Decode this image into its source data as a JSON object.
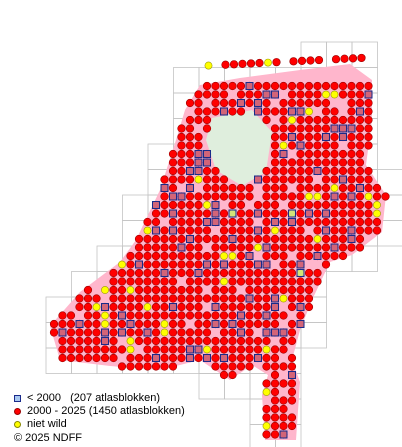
{
  "legend": [
    {
      "label": "< 2000   (207 atlasblokken)"
    },
    {
      "label": "2000 - 2025 (1450 atlasblokken)"
    },
    {
      "label": "niet wild"
    }
  ],
  "copyright": "© 2025 NDFF"
}
